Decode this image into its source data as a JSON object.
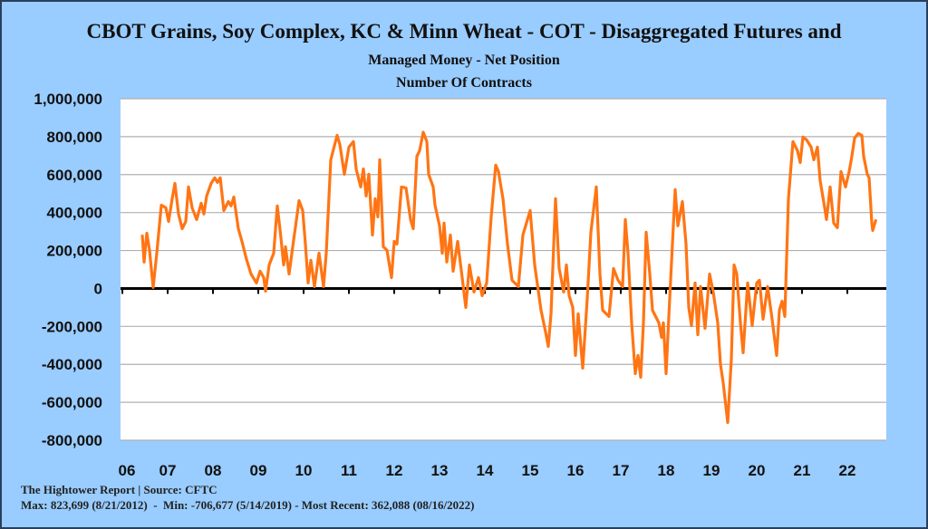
{
  "title": "CBOT Grains, Soy Complex, KC & Minn Wheat - COT - Disaggregated Futures and",
  "subtitle": "Managed Money - Net Position",
  "subtitle2": "Number Of Contracts",
  "footer": {
    "source": "The Hightower Report | Source: CFTC",
    "stats": "Max: 823,699 (8/21/2012)  -  Min: -706,677 (5/14/2019) - Most Recent: 362,088 (08/16/2022)"
  },
  "colors": {
    "background": "#99CCFF",
    "series": "#FF7514",
    "plot": "#FFFFFF",
    "grid": "#B0B0B0",
    "zero_line": "#000000"
  },
  "chart_data": {
    "type": "line",
    "title": "CBOT Grains, Soy Complex, KC & Minn Wheat - COT - Disaggregated Futures and Managed Money - Net Position",
    "ylabel": "Number Of Contracts",
    "ylim": [
      -800000,
      1000000
    ],
    "xlim": [
      2006,
      2022.86
    ],
    "grid": true,
    "legend": "none",
    "y_ticks": [
      1000000,
      800000,
      600000,
      400000,
      200000,
      0,
      -200000,
      -400000,
      -600000,
      -800000
    ],
    "y_tick_labels": [
      "1,000,000",
      "800,000",
      "600,000",
      "400,000",
      "200,000",
      "0",
      "-200,000",
      "-400,000",
      "-600,000",
      "-800,000"
    ],
    "x_ticks": [
      2006,
      2007,
      2008,
      2009,
      2010,
      2011,
      2012,
      2013,
      2014,
      2015,
      2016,
      2017,
      2018,
      2019,
      2020,
      2021,
      2022
    ],
    "x_tick_labels": [
      "06",
      "07",
      "08",
      "09",
      "10",
      "11",
      "12",
      "13",
      "14",
      "15",
      "16",
      "17",
      "18",
      "19",
      "20",
      "21",
      "22"
    ],
    "series_units": "thousand contracts",
    "x": [
      2006.44,
      2006.48,
      2006.54,
      2006.6,
      2006.68,
      2006.76,
      2006.86,
      2006.96,
      2007.02,
      2007.1,
      2007.16,
      2007.24,
      2007.32,
      2007.4,
      2007.46,
      2007.54,
      2007.64,
      2007.74,
      2007.8,
      2007.86,
      2007.96,
      2008.04,
      2008.1,
      2008.16,
      2008.24,
      2008.34,
      2008.4,
      2008.46,
      2008.56,
      2008.64,
      2008.74,
      2008.84,
      2008.96,
      2009.04,
      2009.12,
      2009.16,
      2009.24,
      2009.34,
      2009.42,
      2009.5,
      2009.56,
      2009.6,
      2009.68,
      2009.76,
      2009.9,
      2009.98,
      2010.04,
      2010.1,
      2010.16,
      2010.24,
      2010.34,
      2010.44,
      2010.5,
      2010.6,
      2010.74,
      2010.8,
      2010.9,
      2011.0,
      2011.1,
      2011.16,
      2011.26,
      2011.32,
      2011.38,
      2011.44,
      2011.52,
      2011.58,
      2011.64,
      2011.68,
      2011.76,
      2011.84,
      2011.94,
      2012.0,
      2012.06,
      2012.16,
      2012.26,
      2012.36,
      2012.42,
      2012.5,
      2012.56,
      2012.64,
      2012.72,
      2012.76,
      2012.86,
      2012.9,
      2013.0,
      2013.06,
      2013.1,
      2013.16,
      2013.24,
      2013.3,
      2013.4,
      2013.5,
      2013.58,
      2013.66,
      2013.76,
      2013.86,
      2013.94,
      2014.04,
      2014.14,
      2014.24,
      2014.3,
      2014.4,
      2014.5,
      2014.6,
      2014.74,
      2014.84,
      2015.0,
      2015.1,
      2015.24,
      2015.34,
      2015.4,
      2015.46,
      2015.56,
      2015.64,
      2015.74,
      2015.8,
      2015.86,
      2015.94,
      2016.0,
      2016.06,
      2016.16,
      2016.26,
      2016.34,
      2016.46,
      2016.54,
      2016.6,
      2016.74,
      2016.84,
      2016.94,
      2017.04,
      2017.1,
      2017.16,
      2017.24,
      2017.32,
      2017.38,
      2017.44,
      2017.5,
      2017.56,
      2017.64,
      2017.7,
      2017.84,
      2017.9,
      2017.94,
      2018.0,
      2018.06,
      2018.2,
      2018.26,
      2018.36,
      2018.44,
      2018.5,
      2018.56,
      2018.64,
      2018.7,
      2018.76,
      2018.86,
      2018.96,
      2019.04,
      2019.14,
      2019.2,
      2019.26,
      2019.36,
      2019.44,
      2019.5,
      2019.56,
      2019.64,
      2019.7,
      2019.8,
      2019.9,
      2020.0,
      2020.06,
      2020.14,
      2020.24,
      2020.34,
      2020.44,
      2020.5,
      2020.56,
      2020.62,
      2020.7,
      2020.8,
      2020.9,
      2020.96,
      2021.02,
      2021.1,
      2021.2,
      2021.26,
      2021.34,
      2021.4,
      2021.5,
      2021.54,
      2021.62,
      2021.7,
      2021.78,
      2021.86,
      2021.96,
      2022.04,
      2022.1,
      2022.16,
      2022.24,
      2022.32,
      2022.36,
      2022.44,
      2022.48,
      2022.54,
      2022.56,
      2022.63
    ],
    "y": [
      282,
      139,
      291,
      201,
      5,
      186,
      439,
      425,
      353,
      473,
      554,
      392,
      315,
      353,
      535,
      425,
      363,
      449,
      392,
      487,
      554,
      583,
      559,
      583,
      411,
      458,
      435,
      482,
      315,
      248,
      153,
      76,
      29,
      91,
      57,
      -14,
      124,
      186,
      435,
      267,
      124,
      220,
      76,
      220,
      463,
      411,
      234,
      29,
      148,
      10,
      186,
      10,
      186,
      678,
      807,
      759,
      602,
      745,
      774,
      630,
      535,
      630,
      487,
      602,
      282,
      473,
      377,
      678,
      220,
      201,
      57,
      248,
      234,
      535,
      530,
      363,
      315,
      697,
      726,
      824,
      774,
      602,
      535,
      439,
      330,
      186,
      344,
      139,
      282,
      91,
      248,
      57,
      -100,
      124,
      -19,
      57,
      -38,
      29,
      377,
      650,
      616,
      473,
      234,
      43,
      10,
      282,
      411,
      124,
      -115,
      -229,
      -306,
      -134,
      473,
      105,
      -19,
      124,
      -38,
      -100,
      -353,
      -134,
      -420,
      -53,
      296,
      535,
      76,
      -115,
      -148,
      105,
      43,
      10,
      363,
      186,
      -181,
      -449,
      -353,
      -468,
      -181,
      296,
      76,
      -115,
      -181,
      -258,
      -181,
      -449,
      -148,
      521,
      330,
      458,
      234,
      -100,
      -196,
      29,
      -244,
      10,
      -210,
      76,
      -19,
      -181,
      -401,
      -497,
      -707,
      -373,
      124,
      76,
      -181,
      -339,
      29,
      -196,
      29,
      43,
      -162,
      10,
      -162,
      -353,
      -115,
      -67,
      -148,
      473,
      774,
      726,
      664,
      798,
      783,
      745,
      678,
      745,
      568,
      425,
      363,
      535,
      344,
      320,
      616,
      535,
      616,
      697,
      793,
      817,
      807,
      697,
      602,
      583,
      344,
      306,
      362
    ]
  }
}
